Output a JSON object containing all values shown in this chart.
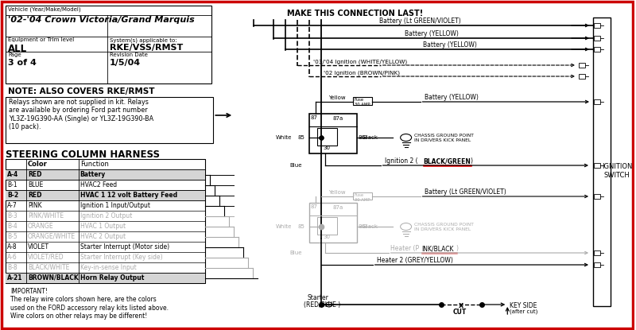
{
  "bg_color": "#ffffff",
  "border_color": "#cc0000",
  "vehicle_label": "Vehicle (Year/Make/Model)",
  "vehicle_name": "'02-'04 Crown Victoria/Grand Marquis",
  "equip_label": "Equipment or Trim level",
  "equip_value": "ALL",
  "system_label": "System(s) applicable to:",
  "system_value": "RKE/VSS/RMST",
  "page_label": "Page",
  "page_value": "3 of 4",
  "revision_label": "Revision Date",
  "revision_value": "1/5/04",
  "note_title": "NOTE: ALSO COVERS RKE/RMST",
  "note_body": "Relays shown are not supplied in kit. Relays\nare available by ordering Ford part number\nYL3Z-19G390-AA (Single) or YL3Z-19G390-BA\n(10 pack).",
  "harness_title": "STEERING COLUMN HARNESS",
  "harness_rows": [
    [
      "A-4",
      "RED",
      "Battery",
      true,
      false
    ],
    [
      "B-1",
      "BLUE",
      "HVAC2 Feed",
      false,
      false
    ],
    [
      "B-2",
      "RED",
      "HVAC 1 12 volt Battery Feed",
      true,
      false
    ],
    [
      "A-7",
      "PINK",
      "Ignition 1 Input/Output",
      false,
      false
    ],
    [
      "B-3",
      "PINK/WHITE",
      "Ignition 2 Output",
      false,
      true
    ],
    [
      "B-4",
      "ORANGE",
      "HVAC 1 Output",
      false,
      true
    ],
    [
      "B-5",
      "ORANGE/WHITE",
      "HVAC 2 Output",
      false,
      true
    ],
    [
      "A-8",
      "VIOLET",
      "Starter Interrupt (Motor side)",
      false,
      false
    ],
    [
      "A-6",
      "VIOLET/RED",
      "Starter Interrupt (Key side)",
      false,
      true
    ],
    [
      "B-8",
      "BLACK/WHITE",
      "Key-in-sense Input",
      false,
      true
    ],
    [
      "A-21",
      "BROWN/BLACK",
      "Horn Relay Output",
      true,
      false
    ]
  ],
  "important_text": "IMPORTANT!\nThe relay wire colors shown here, are the colors\nused on the FORD accessory relay kits listed above.\nWire colors on other relays may be different!",
  "make_last": "MAKE THIS CONNECTION LAST!",
  "ignition_switch_label": "IGNITION\nSWITCH",
  "chassis_ground_label": "CHASSIS GROUND POINT\nIN DRIVERS KICK PANEL",
  "fuse_label": "Fuse\n30 AMP",
  "gray_color": "#aaaaaa",
  "mid_gray": "#888888"
}
